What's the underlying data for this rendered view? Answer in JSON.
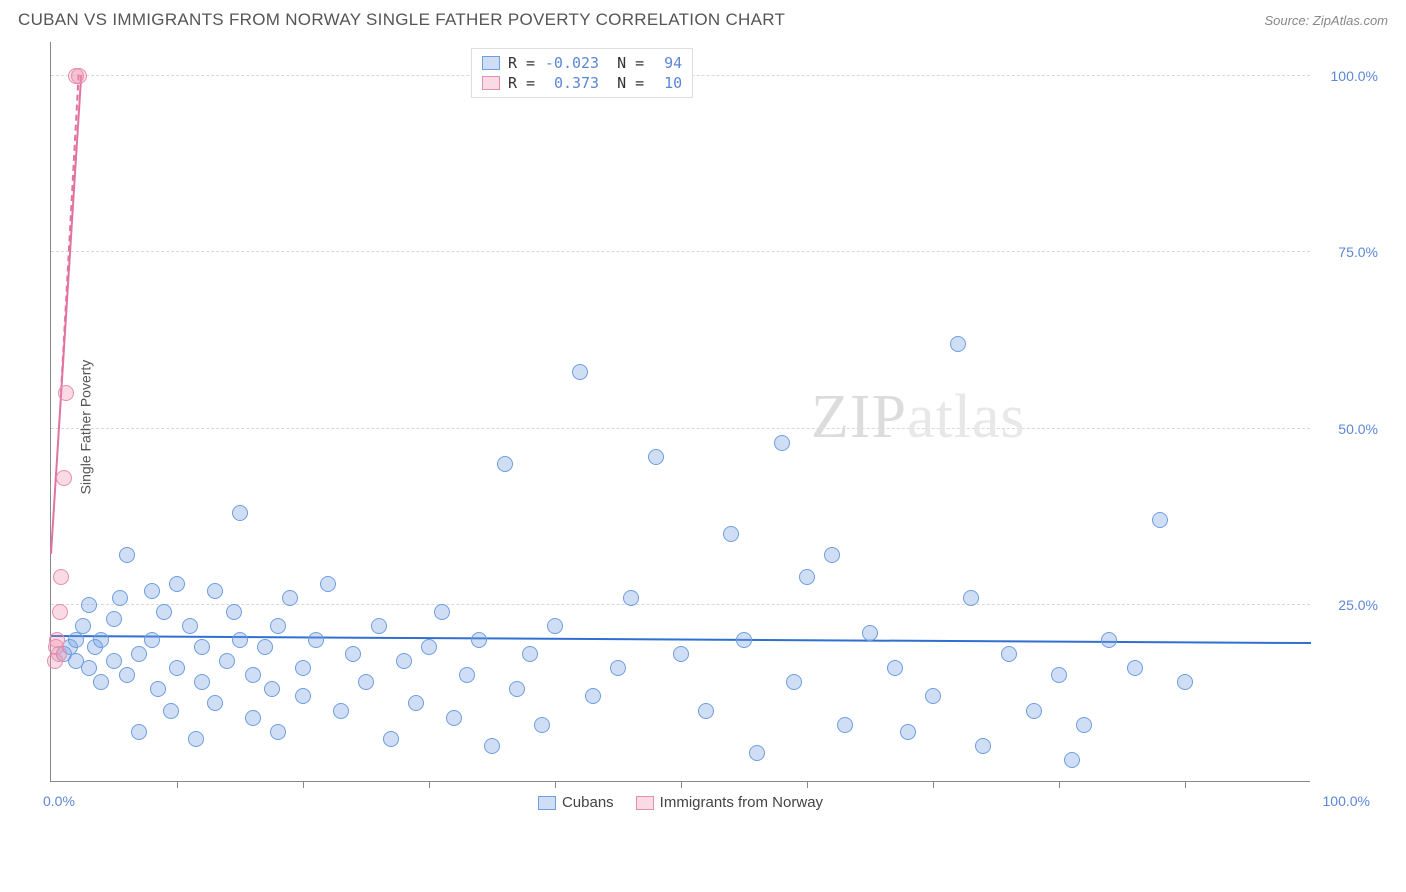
{
  "title": "CUBAN VS IMMIGRANTS FROM NORWAY SINGLE FATHER POVERTY CORRELATION CHART",
  "source": "Source: ZipAtlas.com",
  "y_axis_label": "Single Father Poverty",
  "watermark_a": "ZIP",
  "watermark_b": "atlas",
  "chart": {
    "type": "scatter",
    "xlim": [
      0,
      100
    ],
    "ylim": [
      0,
      105
    ],
    "y_ticks": [
      25,
      50,
      75,
      100
    ],
    "y_tick_labels": [
      "25.0%",
      "50.0%",
      "75.0%",
      "100.0%"
    ],
    "x_corner_labels": [
      "0.0%",
      "100.0%"
    ],
    "x_minor_ticks": [
      10,
      20,
      30,
      40,
      50,
      60,
      70,
      80,
      90
    ],
    "grid_color": "#d8d8d8",
    "background_color": "#ffffff",
    "point_radius": 8,
    "series": [
      {
        "name": "Cubans",
        "fill": "rgba(120,160,225,0.35)",
        "stroke": "#6e9ee0",
        "trend_color": "#2f6fd0",
        "R": "-0.023",
        "N": "94",
        "trend": {
          "x1": 0,
          "y1": 20.5,
          "x2": 100,
          "y2": 19.5
        },
        "points": [
          [
            1,
            18
          ],
          [
            1.5,
            19
          ],
          [
            2,
            17
          ],
          [
            2,
            20
          ],
          [
            2.5,
            22
          ],
          [
            3,
            16
          ],
          [
            3,
            25
          ],
          [
            3.5,
            19
          ],
          [
            4,
            14
          ],
          [
            4,
            20
          ],
          [
            5,
            17
          ],
          [
            5,
            23
          ],
          [
            5.5,
            26
          ],
          [
            6,
            15
          ],
          [
            6,
            32
          ],
          [
            7,
            18
          ],
          [
            7,
            7
          ],
          [
            8,
            20
          ],
          [
            8,
            27
          ],
          [
            8.5,
            13
          ],
          [
            9,
            24
          ],
          [
            9.5,
            10
          ],
          [
            10,
            16
          ],
          [
            10,
            28
          ],
          [
            11,
            22
          ],
          [
            11.5,
            6
          ],
          [
            12,
            19
          ],
          [
            12,
            14
          ],
          [
            13,
            27
          ],
          [
            13,
            11
          ],
          [
            14,
            17
          ],
          [
            14.5,
            24
          ],
          [
            15,
            20
          ],
          [
            15,
            38
          ],
          [
            16,
            9
          ],
          [
            16,
            15
          ],
          [
            17,
            19
          ],
          [
            17.5,
            13
          ],
          [
            18,
            22
          ],
          [
            18,
            7
          ],
          [
            19,
            26
          ],
          [
            20,
            16
          ],
          [
            20,
            12
          ],
          [
            21,
            20
          ],
          [
            22,
            28
          ],
          [
            23,
            10
          ],
          [
            24,
            18
          ],
          [
            25,
            14
          ],
          [
            26,
            22
          ],
          [
            27,
            6
          ],
          [
            28,
            17
          ],
          [
            29,
            11
          ],
          [
            30,
            19
          ],
          [
            31,
            24
          ],
          [
            32,
            9
          ],
          [
            33,
            15
          ],
          [
            34,
            20
          ],
          [
            35,
            5
          ],
          [
            36,
            45
          ],
          [
            37,
            13
          ],
          [
            38,
            18
          ],
          [
            39,
            8
          ],
          [
            40,
            22
          ],
          [
            42,
            58
          ],
          [
            43,
            12
          ],
          [
            45,
            16
          ],
          [
            46,
            26
          ],
          [
            48,
            46
          ],
          [
            50,
            18
          ],
          [
            52,
            10
          ],
          [
            54,
            35
          ],
          [
            55,
            20
          ],
          [
            56,
            4
          ],
          [
            58,
            48
          ],
          [
            59,
            14
          ],
          [
            60,
            29
          ],
          [
            62,
            32
          ],
          [
            63,
            8
          ],
          [
            65,
            21
          ],
          [
            67,
            16
          ],
          [
            68,
            7
          ],
          [
            70,
            12
          ],
          [
            72,
            62
          ],
          [
            73,
            26
          ],
          [
            74,
            5
          ],
          [
            76,
            18
          ],
          [
            78,
            10
          ],
          [
            80,
            15
          ],
          [
            81,
            3
          ],
          [
            82,
            8
          ],
          [
            84,
            20
          ],
          [
            86,
            16
          ],
          [
            88,
            37
          ],
          [
            90,
            14
          ]
        ]
      },
      {
        "name": "Immigrants from Norway",
        "fill": "rgba(240,140,170,0.32)",
        "stroke": "#e58fb0",
        "trend_color": "#e273a0",
        "R": "0.373",
        "N": "10",
        "trend": {
          "x1": 0,
          "y1": 32,
          "x2": 2.4,
          "y2": 100
        },
        "trend_dashed": {
          "x1": 0.8,
          "y1": 55,
          "x2": 2.2,
          "y2": 100
        },
        "points": [
          [
            0.3,
            17
          ],
          [
            0.4,
            19
          ],
          [
            0.5,
            20
          ],
          [
            0.6,
            18
          ],
          [
            0.7,
            24
          ],
          [
            0.8,
            29
          ],
          [
            1.0,
            43
          ],
          [
            1.2,
            55
          ],
          [
            2.0,
            100
          ],
          [
            2.2,
            100
          ]
        ]
      }
    ]
  },
  "legend_top": {
    "rows": [
      {
        "sw_fill": "rgba(120,160,225,0.35)",
        "sw_stroke": "#6e9ee0",
        "r_label": "R =",
        "r_val": "-0.023",
        "n_label": "N =",
        "n_val": "94"
      },
      {
        "sw_fill": "rgba(240,140,170,0.32)",
        "sw_stroke": "#e58fb0",
        "r_label": "R =",
        "r_val": "0.373",
        "n_label": "N =",
        "n_val": "10"
      }
    ]
  },
  "legend_bottom": [
    {
      "sw_fill": "rgba(120,160,225,0.35)",
      "sw_stroke": "#6e9ee0",
      "label": "Cubans"
    },
    {
      "sw_fill": "rgba(240,140,170,0.32)",
      "sw_stroke": "#e58fb0",
      "label": "Immigrants from Norway"
    }
  ]
}
